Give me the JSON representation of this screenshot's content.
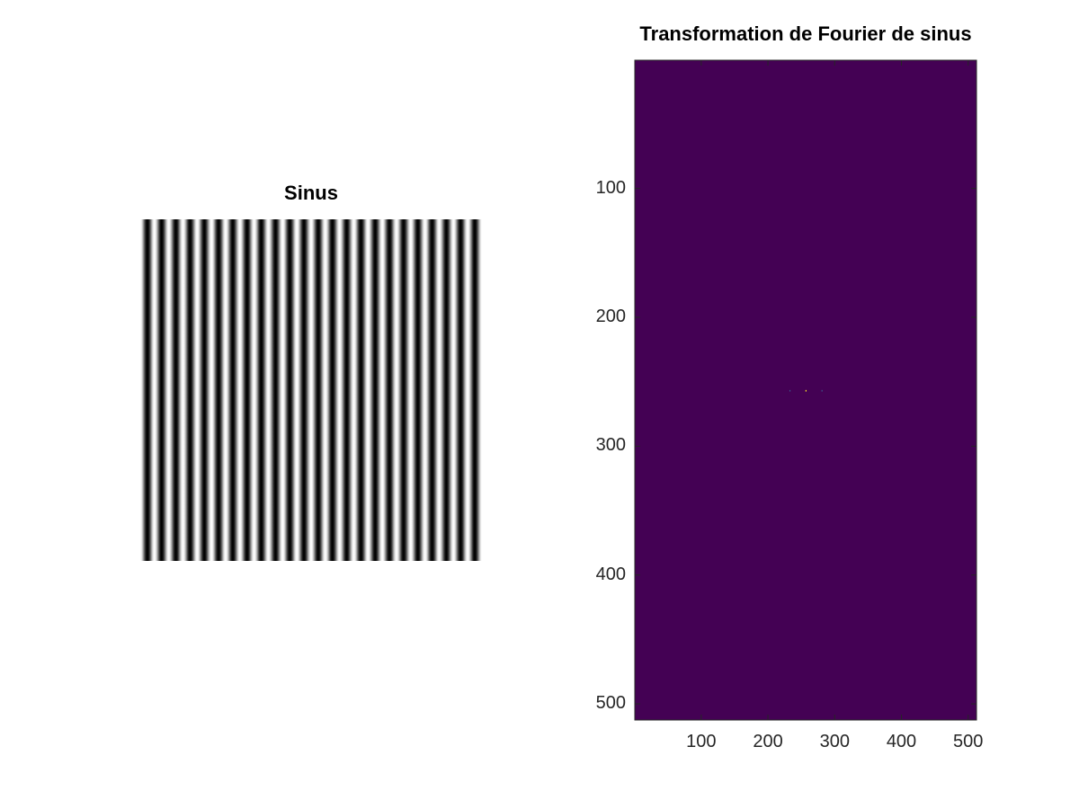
{
  "chart_data": [
    {
      "type": "heatmap",
      "title": "Sinus",
      "colormap": "gray",
      "image": "vertical sinusoidal stripes",
      "periods_across": 24,
      "image_size": [
        512,
        512
      ],
      "axes_visible": false
    },
    {
      "type": "heatmap",
      "title": "Transformation de Fourier de sinus",
      "colormap": "viridis",
      "x_ticks": [
        "100",
        "200",
        "300",
        "400",
        "500"
      ],
      "y_ticks": [
        "100",
        "200",
        "300",
        "400",
        "500"
      ],
      "xlim": [
        0.5,
        512.5
      ],
      "ylim": [
        0.5,
        512.5
      ],
      "y_reversed": true,
      "background_color": "#440154",
      "peaks": [
        {
          "x": 233,
          "y": 257,
          "color": "#3b528b"
        },
        {
          "x": 257,
          "y": 257,
          "color": "#fde725"
        },
        {
          "x": 281,
          "y": 257,
          "color": "#3b528b"
        }
      ]
    }
  ]
}
